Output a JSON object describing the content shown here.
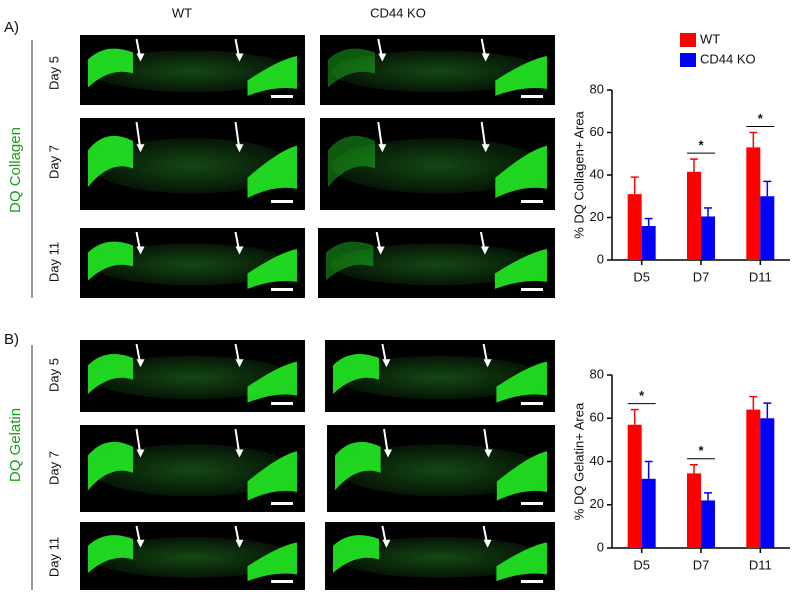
{
  "columns": [
    "WT",
    "CD44 KO"
  ],
  "panels": [
    {
      "label": "A)",
      "stain": "DQ Collagen",
      "days": [
        "Day 5",
        "Day 7",
        "Day 11"
      ]
    },
    {
      "label": "B)",
      "stain": "DQ Gelatin",
      "days": [
        "Day 5",
        "Day 7",
        "Day 11"
      ]
    }
  ],
  "chart_data": [
    {
      "type": "bar",
      "ylabel": "% DQ Collagen+ Area",
      "categories": [
        "D5",
        "D7",
        "D11"
      ],
      "series": [
        {
          "name": "WT",
          "color": "#ff0000",
          "values": [
            31,
            41.5,
            53
          ],
          "errors": [
            8,
            6,
            7
          ]
        },
        {
          "name": "CD44 KO",
          "color": "#0000ff",
          "values": [
            16,
            20.5,
            30
          ],
          "errors": [
            3.5,
            4,
            7
          ]
        }
      ],
      "ylim": [
        0,
        80
      ],
      "yticks": [
        0,
        20,
        40,
        60,
        80
      ],
      "legend": "top-right",
      "annotations": [
        {
          "label": "*",
          "category": "D7"
        },
        {
          "label": "*",
          "category": "D11"
        }
      ]
    },
    {
      "type": "bar",
      "ylabel": "% DQ Gelatin+ Area",
      "categories": [
        "D5",
        "D7",
        "D11"
      ],
      "series": [
        {
          "color": "#ff0000",
          "values": [
            57,
            34.5,
            64
          ],
          "errors": [
            7,
            4,
            6
          ]
        },
        {
          "color": "#0000ff",
          "values": [
            32,
            22,
            60
          ],
          "errors": [
            8,
            3.5,
            7
          ]
        }
      ],
      "ylim": [
        0,
        80
      ],
      "yticks": [
        0,
        20,
        40,
        60,
        80
      ],
      "annotations": [
        {
          "label": "*",
          "category": "D5"
        },
        {
          "label": "*",
          "category": "D7"
        }
      ]
    }
  ]
}
